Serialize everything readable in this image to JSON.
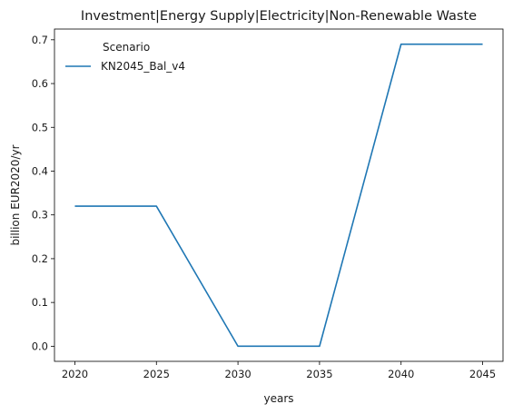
{
  "chart_data": {
    "type": "line",
    "title": "Investment|Energy Supply|Electricity|Non-Renewable Waste",
    "xlabel": "years",
    "ylabel": "billion EUR2020/yr",
    "x": [
      2020,
      2025,
      2030,
      2035,
      2040,
      2045
    ],
    "series": [
      {
        "name": "KN2045_Bal_v4",
        "values": [
          0.32,
          0.32,
          0.0,
          0.0,
          0.69,
          0.69
        ],
        "color": "#1f77b4"
      }
    ],
    "xticks": [
      2020,
      2025,
      2030,
      2035,
      2040,
      2045
    ],
    "yticks": [
      0.0,
      0.1,
      0.2,
      0.3,
      0.4,
      0.5,
      0.6,
      0.7
    ],
    "ytick_labels": [
      "0.0",
      "0.1",
      "0.2",
      "0.3",
      "0.4",
      "0.5",
      "0.6",
      "0.7"
    ],
    "xlim": [
      2018.75,
      2046.25
    ],
    "ylim": [
      -0.0345,
      0.7245
    ],
    "legend": {
      "title": "Scenario",
      "location": "upper-left"
    },
    "grid": false
  }
}
